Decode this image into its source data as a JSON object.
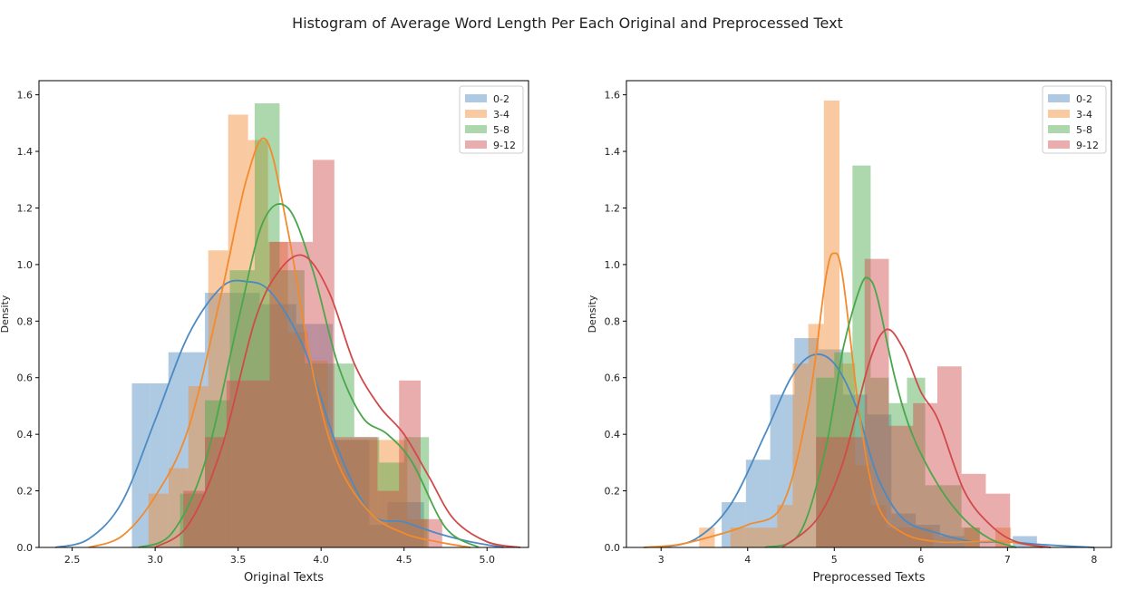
{
  "figure": {
    "title": "Histogram of Average Word Length Per Each Original and Preprocessed Text"
  },
  "series_colors": {
    "0-2": "#4c8ac2",
    "3-4": "#f28a2e",
    "5-8": "#4aa64a",
    "9-12": "#d04a4a"
  },
  "chart_data": [
    {
      "type": "histogram",
      "xlabel": "Original Texts",
      "ylabel": "Density",
      "xlim": [
        2.3,
        5.25
      ],
      "ylim": [
        0,
        1.65
      ],
      "xticks": [
        2.5,
        3.0,
        3.5,
        4.0,
        4.5,
        5.0
      ],
      "xtick_labels": [
        "2.5",
        "3.0",
        "3.5",
        "4.0",
        "4.5",
        "5.0"
      ],
      "yticks": [
        0.0,
        0.2,
        0.4,
        0.6,
        0.8,
        1.0,
        1.2,
        1.4,
        1.6
      ],
      "ytick_labels": [
        "0.0",
        "0.2",
        "0.4",
        "0.6",
        "0.8",
        "1.0",
        "1.2",
        "1.4",
        "1.6"
      ],
      "legend_position": "top-right",
      "series": [
        {
          "name": "0-2",
          "bins": [
            [
              2.86,
              2.97,
              0.58
            ],
            [
              2.97,
              3.08,
              0.58
            ],
            [
              3.08,
              3.19,
              0.69
            ],
            [
              3.19,
              3.3,
              0.69
            ],
            [
              3.3,
              3.41,
              0.9
            ],
            [
              3.41,
              3.52,
              0.9
            ],
            [
              3.52,
              3.63,
              0.9
            ],
            [
              3.63,
              3.74,
              0.86
            ],
            [
              3.74,
              3.85,
              0.86
            ],
            [
              3.85,
              3.96,
              0.79
            ],
            [
              3.96,
              4.07,
              0.79
            ],
            [
              4.07,
              4.18,
              0.38
            ],
            [
              4.18,
              4.29,
              0.38
            ],
            [
              4.29,
              4.4,
              0.08
            ],
            [
              4.4,
              4.51,
              0.16
            ],
            [
              4.51,
              4.62,
              0.16
            ]
          ],
          "kde_x": [
            2.4,
            2.6,
            2.8,
            3.0,
            3.2,
            3.4,
            3.55,
            3.7,
            3.9,
            4.1,
            4.3,
            4.5,
            4.7,
            4.9,
            5.1
          ],
          "kde_y": [
            0.0,
            0.03,
            0.16,
            0.45,
            0.75,
            0.92,
            0.94,
            0.9,
            0.7,
            0.35,
            0.12,
            0.09,
            0.05,
            0.02,
            0.0
          ]
        },
        {
          "name": "3-4",
          "bins": [
            [
              2.96,
              3.08,
              0.19
            ],
            [
              3.08,
              3.2,
              0.28
            ],
            [
              3.2,
              3.32,
              0.57
            ],
            [
              3.32,
              3.44,
              1.05
            ],
            [
              3.44,
              3.56,
              1.53
            ],
            [
              3.56,
              3.68,
              1.44
            ],
            [
              3.68,
              3.8,
              1.08
            ],
            [
              3.8,
              3.92,
              0.76
            ],
            [
              3.92,
              4.04,
              0.66
            ],
            [
              4.04,
              4.16,
              0.38
            ],
            [
              4.16,
              4.28,
              0.38
            ],
            [
              4.28,
              4.4,
              0.38
            ],
            [
              4.4,
              4.52,
              0.38
            ],
            [
              4.52,
              4.64,
              0.1
            ]
          ],
          "kde_x": [
            2.6,
            2.8,
            3.0,
            3.2,
            3.4,
            3.55,
            3.67,
            3.8,
            3.95,
            4.1,
            4.3,
            4.5,
            4.7,
            4.9
          ],
          "kde_y": [
            0.0,
            0.04,
            0.18,
            0.42,
            0.9,
            1.3,
            1.44,
            1.12,
            0.62,
            0.3,
            0.12,
            0.05,
            0.02,
            0.0
          ]
        },
        {
          "name": "5-8",
          "bins": [
            [
              3.15,
              3.3,
              0.19
            ],
            [
              3.3,
              3.45,
              0.52
            ],
            [
              3.45,
              3.6,
              0.98
            ],
            [
              3.6,
              3.75,
              1.57
            ],
            [
              3.75,
              3.9,
              0.98
            ],
            [
              3.9,
              4.05,
              0.65
            ],
            [
              4.05,
              4.2,
              0.65
            ],
            [
              4.2,
              4.35,
              0.39
            ],
            [
              4.35,
              4.5,
              0.3
            ],
            [
              4.5,
              4.65,
              0.39
            ]
          ],
          "kde_x": [
            2.9,
            3.1,
            3.3,
            3.5,
            3.65,
            3.8,
            3.95,
            4.1,
            4.25,
            4.4,
            4.55,
            4.75,
            4.95
          ],
          "kde_y": [
            0.0,
            0.05,
            0.3,
            0.8,
            1.15,
            1.2,
            0.98,
            0.65,
            0.46,
            0.4,
            0.3,
            0.07,
            0.0
          ]
        },
        {
          "name": "9-12",
          "bins": [
            [
              3.17,
              3.3,
              0.2
            ],
            [
              3.3,
              3.43,
              0.39
            ],
            [
              3.43,
              3.56,
              0.59
            ],
            [
              3.56,
              3.69,
              0.59
            ],
            [
              3.69,
              3.82,
              1.08
            ],
            [
              3.82,
              3.95,
              1.08
            ],
            [
              3.95,
              4.08,
              1.37
            ],
            [
              4.08,
              4.21,
              0.39
            ],
            [
              4.21,
              4.34,
              0.39
            ],
            [
              4.34,
              4.47,
              0.2
            ],
            [
              4.47,
              4.6,
              0.59
            ],
            [
              4.6,
              4.73,
              0.1
            ]
          ],
          "kde_x": [
            3.0,
            3.2,
            3.4,
            3.6,
            3.75,
            3.9,
            4.05,
            4.2,
            4.35,
            4.5,
            4.65,
            4.8,
            5.0,
            5.2
          ],
          "kde_y": [
            0.0,
            0.08,
            0.35,
            0.8,
            0.98,
            1.03,
            0.9,
            0.65,
            0.5,
            0.4,
            0.25,
            0.1,
            0.02,
            0.0
          ]
        }
      ]
    },
    {
      "type": "histogram",
      "xlabel": "Preprocessed Texts",
      "ylabel": "Density",
      "xlim": [
        2.6,
        8.2
      ],
      "ylim": [
        0,
        1.65
      ],
      "xticks": [
        3,
        4,
        5,
        6,
        7,
        8
      ],
      "xtick_labels": [
        "3",
        "4",
        "5",
        "6",
        "7",
        "8"
      ],
      "yticks": [
        0.0,
        0.2,
        0.4,
        0.6,
        0.8,
        1.0,
        1.2,
        1.4,
        1.6
      ],
      "ytick_labels": [
        "0.0",
        "0.2",
        "0.4",
        "0.6",
        "0.8",
        "1.0",
        "1.2",
        "1.4",
        "1.6"
      ],
      "legend_position": "top-right",
      "series": [
        {
          "name": "0-2",
          "bins": [
            [
              3.7,
              3.98,
              0.16
            ],
            [
              3.98,
              4.26,
              0.31
            ],
            [
              4.26,
              4.54,
              0.54
            ],
            [
              4.54,
              4.82,
              0.74
            ],
            [
              4.82,
              5.1,
              0.7
            ],
            [
              5.1,
              5.38,
              0.54
            ],
            [
              5.38,
              5.66,
              0.47
            ],
            [
              5.66,
              5.94,
              0.12
            ],
            [
              5.94,
              6.22,
              0.08
            ],
            [
              6.22,
              6.5,
              0.04
            ],
            [
              6.5,
              6.78,
              0.0
            ],
            [
              6.78,
              7.06,
              0.0
            ],
            [
              7.06,
              7.34,
              0.04
            ]
          ],
          "kde_x": [
            3.0,
            3.4,
            3.8,
            4.2,
            4.5,
            4.75,
            5.0,
            5.25,
            5.5,
            5.8,
            6.2,
            6.6,
            7.0,
            7.4,
            8.0
          ],
          "kde_y": [
            0.0,
            0.03,
            0.15,
            0.4,
            0.6,
            0.68,
            0.65,
            0.5,
            0.25,
            0.1,
            0.05,
            0.02,
            0.02,
            0.01,
            0.0
          ]
        },
        {
          "name": "3-4",
          "bins": [
            [
              3.44,
              3.62,
              0.07
            ],
            [
              3.62,
              3.8,
              0.0
            ],
            [
              3.8,
              3.98,
              0.07
            ],
            [
              3.98,
              4.16,
              0.07
            ],
            [
              4.16,
              4.34,
              0.07
            ],
            [
              4.34,
              4.52,
              0.15
            ],
            [
              4.52,
              4.7,
              0.65
            ],
            [
              4.7,
              4.88,
              0.79
            ],
            [
              4.88,
              5.06,
              1.58
            ],
            [
              5.06,
              5.24,
              0.65
            ],
            [
              5.24,
              5.42,
              0.29
            ],
            [
              5.42,
              5.6,
              0.15
            ],
            [
              5.6,
              5.78,
              0.07
            ],
            [
              5.78,
              5.96,
              0.07
            ],
            [
              5.96,
              6.14,
              0.07
            ],
            [
              6.14,
              6.32,
              0.0
            ],
            [
              6.32,
              6.5,
              0.0
            ],
            [
              6.5,
              6.68,
              0.07
            ],
            [
              6.68,
              6.86,
              0.0
            ],
            [
              6.86,
              7.04,
              0.07
            ]
          ],
          "kde_x": [
            2.8,
            3.2,
            3.6,
            4.0,
            4.4,
            4.7,
            4.9,
            5.0,
            5.1,
            5.3,
            5.5,
            5.8,
            6.2,
            6.6,
            7.0,
            7.4
          ],
          "kde_y": [
            0.0,
            0.01,
            0.04,
            0.08,
            0.15,
            0.5,
            0.95,
            1.04,
            0.95,
            0.45,
            0.15,
            0.05,
            0.02,
            0.02,
            0.02,
            0.0
          ]
        },
        {
          "name": "5-8",
          "bins": [
            [
              4.79,
              5.0,
              0.6
            ],
            [
              5.0,
              5.21,
              0.69
            ],
            [
              5.21,
              5.42,
              1.35
            ],
            [
              5.42,
              5.63,
              0.6
            ],
            [
              5.63,
              5.84,
              0.51
            ],
            [
              5.84,
              6.05,
              0.6
            ],
            [
              6.05,
              6.26,
              0.22
            ],
            [
              6.26,
              6.47,
              0.22
            ],
            [
              6.47,
              6.68,
              0.07
            ]
          ],
          "kde_x": [
            4.2,
            4.6,
            4.9,
            5.1,
            5.3,
            5.4,
            5.5,
            5.7,
            5.9,
            6.2,
            6.5,
            6.8,
            7.1
          ],
          "kde_y": [
            0.0,
            0.05,
            0.35,
            0.7,
            0.92,
            0.95,
            0.88,
            0.6,
            0.4,
            0.22,
            0.1,
            0.03,
            0.0
          ]
        },
        {
          "name": "9-12",
          "bins": [
            [
              4.79,
              5.07,
              0.39
            ],
            [
              5.07,
              5.35,
              0.39
            ],
            [
              5.35,
              5.63,
              1.02
            ],
            [
              5.63,
              5.91,
              0.43
            ],
            [
              5.91,
              6.19,
              0.51
            ],
            [
              6.19,
              6.47,
              0.64
            ],
            [
              6.47,
              6.75,
              0.26
            ],
            [
              6.75,
              7.03,
              0.19
            ],
            [
              7.03,
              7.31,
              0.0
            ],
            [
              7.31,
              7.59,
              0.0
            ]
          ],
          "kde_x": [
            4.4,
            4.8,
            5.1,
            5.4,
            5.6,
            5.8,
            6.0,
            6.2,
            6.5,
            6.8,
            7.1,
            7.5
          ],
          "kde_y": [
            0.0,
            0.1,
            0.3,
            0.65,
            0.77,
            0.7,
            0.55,
            0.45,
            0.2,
            0.08,
            0.02,
            0.0
          ]
        }
      ]
    }
  ]
}
